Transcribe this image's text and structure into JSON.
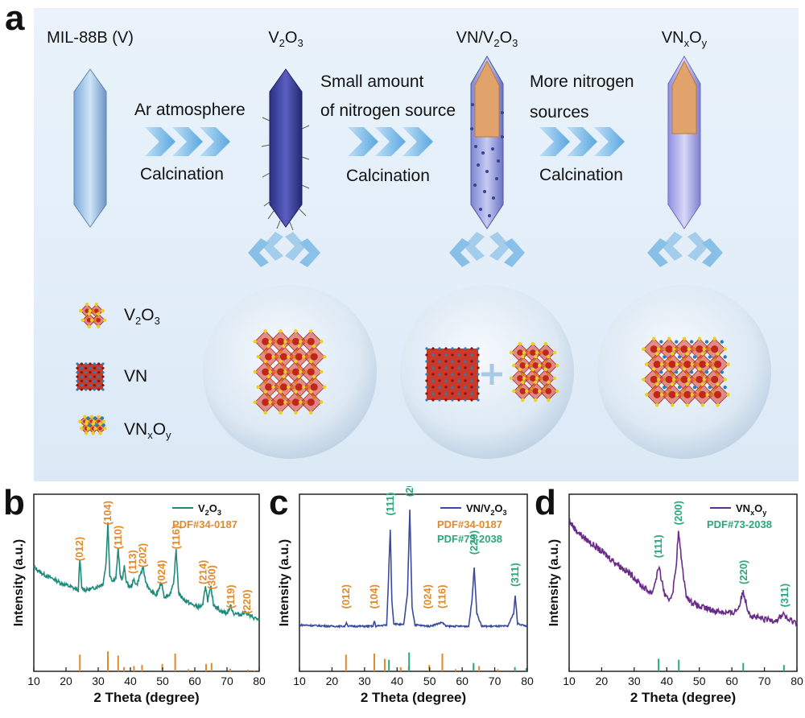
{
  "panel_a": {
    "letter": "a",
    "stages": [
      {
        "title": "MIL-88B (V)"
      },
      {
        "title_main": "V",
        "sub1": "2",
        "mid": "O",
        "sub2": "3"
      },
      {
        "title_main": "VN/V",
        "sub1": "2",
        "mid": "O",
        "sub2": "3"
      },
      {
        "title_main": "VN",
        "sub1": "x",
        "mid": "O",
        "sub2": "y"
      }
    ],
    "arrows": [
      {
        "top": "Ar atmosphere",
        "bottom": "Calcination"
      },
      {
        "top_line1": "Small amount",
        "top_line2": "of nitrogen source",
        "bottom": "Calcination"
      },
      {
        "top_line1": "More nitrogen",
        "top_line2": "sources",
        "bottom": "Calcination"
      }
    ],
    "legend": [
      {
        "main": "V",
        "sub1": "2",
        "mid": "O",
        "sub2": "3"
      },
      {
        "main": "VN"
      },
      {
        "main": "VN",
        "sub1": "x",
        "mid": "O",
        "sub2": "y"
      }
    ],
    "colors": {
      "crystal": "#9fc6ec",
      "v2o3": "#3b3f9e",
      "vn_v2o3": "#8a90d8",
      "vnxoy": "#a6a4e8",
      "core": "#e1a36b",
      "octahedra": "#d83a2a",
      "oxygen": "#e8d21a",
      "nitrogen": "#2a7fb8"
    }
  },
  "chart_data": [
    {
      "letter": "b",
      "type": "line",
      "title": "",
      "xlabel": "2 Theta (degree)",
      "ylabel": "Intensity (a.u.)",
      "xlim": [
        10,
        80
      ],
      "xticks": [
        10,
        20,
        30,
        40,
        50,
        60,
        70,
        80
      ],
      "series": [
        {
          "name_main": "V",
          "name_sub1": "2",
          "name_mid": "O",
          "name_sub2": "3",
          "color": "#1f8a7a"
        }
      ],
      "reference": [
        {
          "name": "PDF#34-0187",
          "color": "#e08a2c"
        }
      ],
      "curve_points": [
        [
          10,
          0.56
        ],
        [
          12,
          0.52
        ],
        [
          14,
          0.49
        ],
        [
          16,
          0.47
        ],
        [
          18,
          0.44
        ],
        [
          20,
          0.42
        ],
        [
          22,
          0.4
        ],
        [
          23.8,
          0.38
        ],
        [
          24.3,
          0.62
        ],
        [
          24.9,
          0.4
        ],
        [
          26,
          0.38
        ],
        [
          28,
          0.39
        ],
        [
          30,
          0.41
        ],
        [
          31.5,
          0.43
        ],
        [
          32.4,
          0.58
        ],
        [
          33,
          0.9
        ],
        [
          33.6,
          0.5
        ],
        [
          34.5,
          0.45
        ],
        [
          35.5,
          0.48
        ],
        [
          36.2,
          0.7
        ],
        [
          36.8,
          0.5
        ],
        [
          37.5,
          0.46
        ],
        [
          38.1,
          0.56
        ],
        [
          38.8,
          0.44
        ],
        [
          40,
          0.4
        ],
        [
          41.1,
          0.46
        ],
        [
          42,
          0.42
        ],
        [
          43,
          0.5
        ],
        [
          44,
          0.55
        ],
        [
          44.7,
          0.45
        ],
        [
          46,
          0.38
        ],
        [
          48,
          0.34
        ],
        [
          49.7,
          0.44
        ],
        [
          50.5,
          0.33
        ],
        [
          52,
          0.34
        ],
        [
          53.4,
          0.42
        ],
        [
          54.2,
          0.7
        ],
        [
          55,
          0.35
        ],
        [
          57,
          0.3
        ],
        [
          59,
          0.27
        ],
        [
          61,
          0.25
        ],
        [
          62.5,
          0.26
        ],
        [
          63.3,
          0.42
        ],
        [
          64,
          0.3
        ],
        [
          65,
          0.4
        ],
        [
          65.8,
          0.27
        ],
        [
          68,
          0.22
        ],
        [
          70,
          0.2
        ],
        [
          71.2,
          0.26
        ],
        [
          72,
          0.2
        ],
        [
          74,
          0.19
        ],
        [
          76,
          0.21
        ],
        [
          77,
          0.18
        ],
        [
          80,
          0.15
        ]
      ],
      "ref_lines": [
        [
          24.3,
          0.8
        ],
        [
          33,
          0.95
        ],
        [
          36.2,
          0.75
        ],
        [
          38,
          0.2
        ],
        [
          41.1,
          0.25
        ],
        [
          43.6,
          0.3
        ],
        [
          49.9,
          0.35
        ],
        [
          53.9,
          0.85
        ],
        [
          58,
          0.1
        ],
        [
          63.5,
          0.35
        ],
        [
          65.2,
          0.4
        ],
        [
          71,
          0.12
        ],
        [
          76.5,
          0.08
        ],
        [
          78.5,
          0.05
        ]
      ],
      "peak_labels": [
        {
          "label": "(012)",
          "x": 24.3,
          "y": 0.7
        },
        {
          "label": "(104)",
          "x": 33,
          "y": 0.98
        },
        {
          "label": "(110)",
          "x": 36.2,
          "y": 0.79
        },
        {
          "label": "(113)",
          "x": 40.8,
          "y": 0.6
        },
        {
          "label": "(202)",
          "x": 43.9,
          "y": 0.65
        },
        {
          "label": "(024)",
          "x": 49.7,
          "y": 0.52
        },
        {
          "label": "(116)",
          "x": 54.2,
          "y": 0.79
        },
        {
          "label": "(214)",
          "x": 62.6,
          "y": 0.52
        },
        {
          "label": "(300)",
          "x": 65.4,
          "y": 0.48
        },
        {
          "label": "(119)",
          "x": 71.2,
          "y": 0.33
        },
        {
          "label": "(220)",
          "x": 76.3,
          "y": 0.29
        }
      ]
    },
    {
      "letter": "c",
      "type": "line",
      "title": "",
      "xlabel": "2 Theta (degree)",
      "ylabel": "Intensity (a.u.)",
      "xlim": [
        10,
        80
      ],
      "xticks": [
        10,
        20,
        30,
        40,
        50,
        60,
        70,
        80
      ],
      "series": [
        {
          "name_main": "VN/V",
          "name_sub1": "2",
          "name_mid": "O",
          "name_sub2": "3",
          "color": "#3a4aa0"
        }
      ],
      "reference": [
        {
          "name": "PDF#34-0187",
          "color": "#e08a2c"
        },
        {
          "name": "PDF#73-2038",
          "color": "#2aa87a"
        }
      ],
      "curve_points": [
        [
          10,
          0.11
        ],
        [
          20,
          0.1
        ],
        [
          24,
          0.1
        ],
        [
          24.4,
          0.13
        ],
        [
          25,
          0.1
        ],
        [
          32.6,
          0.1
        ],
        [
          33,
          0.14
        ],
        [
          33.5,
          0.1
        ],
        [
          36.8,
          0.11
        ],
        [
          37.4,
          0.5
        ],
        [
          37.9,
          0.85
        ],
        [
          38.4,
          0.3
        ],
        [
          39,
          0.12
        ],
        [
          42,
          0.11
        ],
        [
          43.2,
          0.35
        ],
        [
          43.9,
          1.0
        ],
        [
          44.6,
          0.25
        ],
        [
          45.5,
          0.11
        ],
        [
          50,
          0.1
        ],
        [
          53.9,
          0.13
        ],
        [
          55,
          0.1
        ],
        [
          62,
          0.1
        ],
        [
          63,
          0.3
        ],
        [
          63.7,
          0.56
        ],
        [
          64.5,
          0.2
        ],
        [
          66,
          0.1
        ],
        [
          74,
          0.1
        ],
        [
          75.8,
          0.2
        ],
        [
          76.3,
          0.34
        ],
        [
          77,
          0.12
        ],
        [
          80,
          0.1
        ]
      ],
      "ref_lines": [
        [
          24.3,
          0.8,
          "o"
        ],
        [
          33,
          0.85,
          "o"
        ],
        [
          36.2,
          0.6,
          "o"
        ],
        [
          41.1,
          0.2,
          "o"
        ],
        [
          43.6,
          0.25,
          "o"
        ],
        [
          49.9,
          0.3,
          "o"
        ],
        [
          53.9,
          0.85,
          "o"
        ],
        [
          58,
          0.1,
          "o"
        ],
        [
          63.5,
          0.3,
          "o"
        ],
        [
          65.2,
          0.25,
          "o"
        ],
        [
          71,
          0.1,
          "o"
        ],
        [
          37.5,
          0.55,
          "g"
        ],
        [
          43.7,
          0.9,
          "g"
        ],
        [
          63.5,
          0.4,
          "g"
        ],
        [
          76.2,
          0.2,
          "g"
        ],
        [
          79.7,
          0.15,
          "g"
        ]
      ],
      "peak_labels": [
        {
          "label": "(012)",
          "x": 24.3,
          "y": 0.33,
          "c": "o"
        },
        {
          "label": "(104)",
          "x": 33,
          "y": 0.33,
          "c": "o"
        },
        {
          "label": "(024)",
          "x": 49.5,
          "y": 0.33,
          "c": "o"
        },
        {
          "label": "(116)",
          "x": 53.9,
          "y": 0.33,
          "c": "o"
        },
        {
          "label": "(111)",
          "x": 37.9,
          "y": 1.05,
          "c": "g"
        },
        {
          "label": "(200)",
          "x": 43.9,
          "y": 1.2,
          "c": "g"
        },
        {
          "label": "(220)",
          "x": 63.7,
          "y": 0.75,
          "c": "g"
        },
        {
          "label": "(311)",
          "x": 76.3,
          "y": 0.5,
          "c": "g"
        }
      ]
    },
    {
      "letter": "d",
      "type": "line",
      "title": "",
      "xlabel": "2 Theta (degree)",
      "ylabel": "Intensity (a.u.)",
      "xlim": [
        10,
        80
      ],
      "xticks": [
        10,
        20,
        30,
        40,
        50,
        60,
        70,
        80
      ],
      "series": [
        {
          "name_main": "VN",
          "name_sub1": "x",
          "name_mid": "O",
          "name_sub2": "y",
          "color": "#6a2a8a"
        }
      ],
      "reference": [
        {
          "name": "PDF#73-2038",
          "color": "#2aa87a"
        }
      ],
      "curve_points": [
        [
          10,
          0.92
        ],
        [
          12,
          0.85
        ],
        [
          14,
          0.8
        ],
        [
          16,
          0.76
        ],
        [
          18,
          0.72
        ],
        [
          20,
          0.68
        ],
        [
          22,
          0.64
        ],
        [
          24,
          0.6
        ],
        [
          26,
          0.56
        ],
        [
          28,
          0.52
        ],
        [
          30,
          0.48
        ],
        [
          32,
          0.42
        ],
        [
          34,
          0.38
        ],
        [
          35.5,
          0.36
        ],
        [
          36.5,
          0.45
        ],
        [
          37.5,
          0.56
        ],
        [
          38.5,
          0.45
        ],
        [
          39.5,
          0.33
        ],
        [
          40.5,
          0.3
        ],
        [
          41.8,
          0.36
        ],
        [
          42.8,
          0.55
        ],
        [
          43.6,
          0.83
        ],
        [
          44.6,
          0.6
        ],
        [
          45.8,
          0.36
        ],
        [
          47,
          0.3
        ],
        [
          50,
          0.25
        ],
        [
          55,
          0.22
        ],
        [
          60,
          0.2
        ],
        [
          62,
          0.24
        ],
        [
          63.5,
          0.37
        ],
        [
          64.8,
          0.24
        ],
        [
          66,
          0.18
        ],
        [
          70,
          0.15
        ],
        [
          74,
          0.15
        ],
        [
          76,
          0.2
        ],
        [
          77,
          0.15
        ],
        [
          80,
          0.13
        ]
      ],
      "ref_lines": [
        [
          37.5,
          0.6,
          "g"
        ],
        [
          43.7,
          0.55,
          "g"
        ],
        [
          63.5,
          0.4,
          "g"
        ],
        [
          76,
          0.3,
          "g"
        ]
      ],
      "peak_labels": [
        {
          "label": "(111)",
          "x": 37.5,
          "y": 0.72,
          "c": "g"
        },
        {
          "label": "(200)",
          "x": 43.6,
          "y": 0.98,
          "c": "g"
        },
        {
          "label": "(220)",
          "x": 63.7,
          "y": 0.52,
          "c": "g"
        },
        {
          "label": "(311)",
          "x": 76.3,
          "y": 0.34,
          "c": "g"
        }
      ]
    }
  ]
}
